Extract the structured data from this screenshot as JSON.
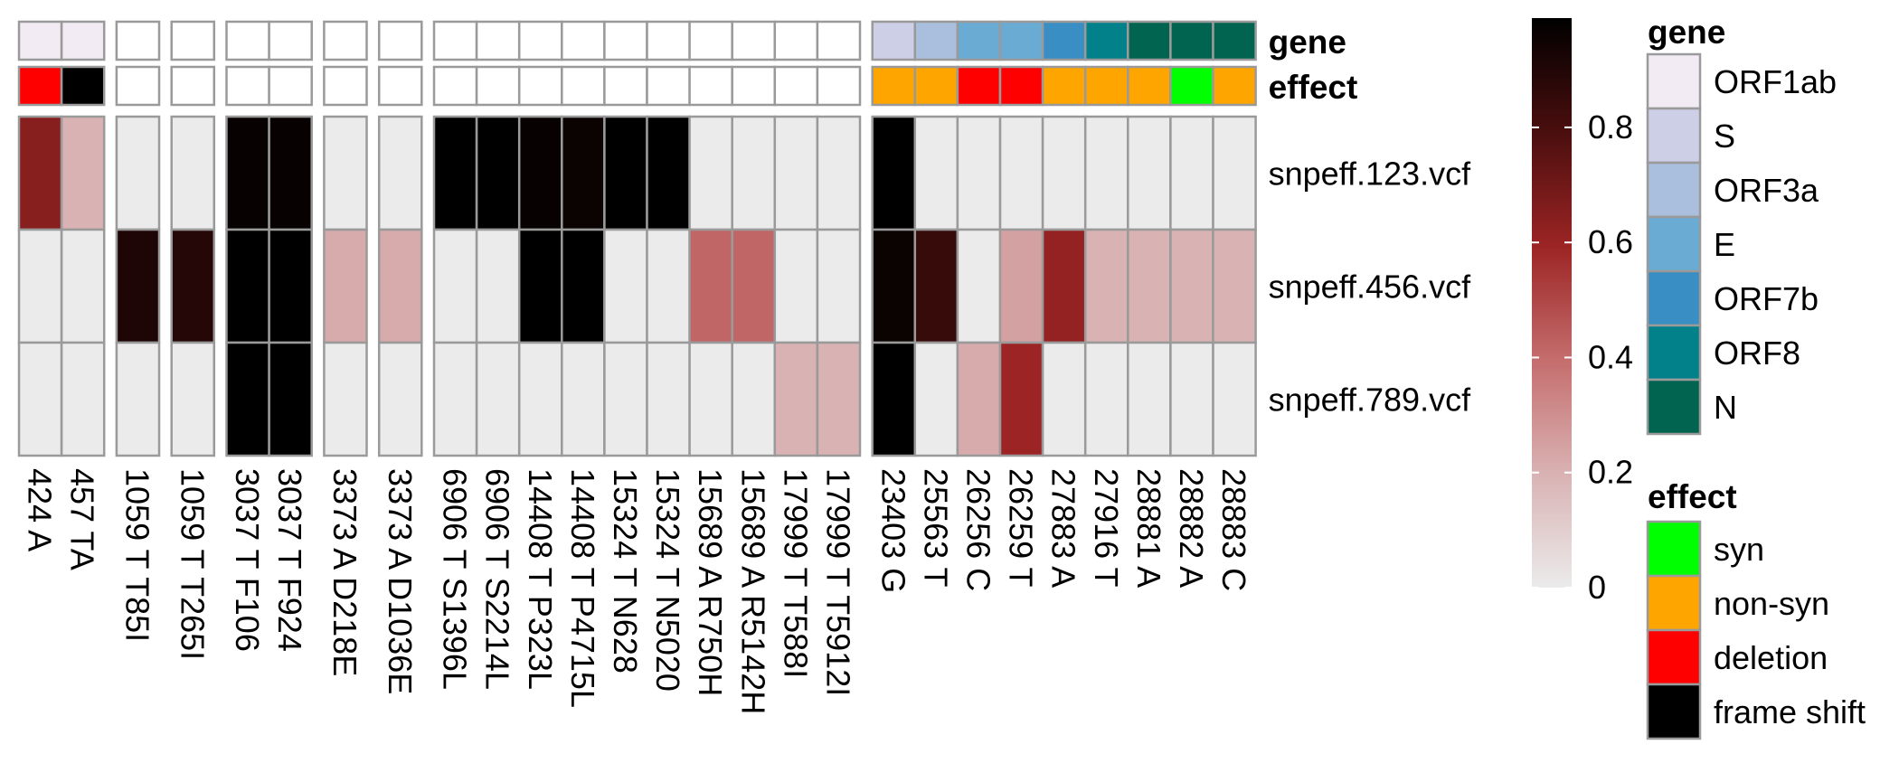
{
  "chart_data": {
    "type": "heatmap",
    "title": "",
    "xlabel": "",
    "ylabel": "",
    "columns": [
      "424 A",
      "457 TA",
      "1059 T T85I",
      "1059 T T265I",
      "3037 T F106",
      "3037 T F924",
      "3373 A D218E",
      "3373 A D1036E",
      "6906 T S1396L",
      "6906 T S2214L",
      "14408 T P323L",
      "14408 T P4715L",
      "15324 T N628",
      "15324 T N5020",
      "15689 A R750H",
      "15689 A R5142H",
      "17999 T T588I",
      "17999 T T5912I",
      "23403 G",
      "25563 T",
      "26256 C",
      "26259 T",
      "27883 A",
      "27916 T",
      "28881 A",
      "28882 A",
      "28883 C"
    ],
    "column_groups": [
      2,
      1,
      1,
      2,
      1,
      1,
      10,
      9
    ],
    "rows": [
      "snpeff.123.vcf",
      "snpeff.456.vcf",
      "snpeff.789.vcf"
    ],
    "values": [
      [
        0.65,
        0.2,
        0,
        0,
        0.98,
        0.98,
        0,
        0,
        1.0,
        1.0,
        0.98,
        0.97,
        1.0,
        1.0,
        0,
        0,
        0,
        0,
        1.0,
        0,
        0,
        0,
        0,
        0,
        0,
        0,
        0
      ],
      [
        0,
        0,
        0.92,
        0.9,
        1.0,
        1.0,
        0.22,
        0.22,
        0,
        0,
        1.0,
        1.0,
        0,
        0,
        0.42,
        0.42,
        0,
        0,
        0.97,
        0.85,
        0,
        0.25,
        0.62,
        0.2,
        0.2,
        0.2,
        0.2
      ],
      [
        0,
        0,
        0,
        0,
        1.0,
        1.0,
        0,
        0,
        0,
        0,
        0,
        0,
        0,
        0,
        0,
        0,
        0.2,
        0.2,
        1.0,
        0,
        0.22,
        0.6,
        0,
        0,
        0,
        0,
        0
      ]
    ],
    "gene_annotation": [
      0,
      0,
      null,
      null,
      null,
      null,
      null,
      null,
      null,
      null,
      null,
      null,
      null,
      null,
      null,
      null,
      null,
      null,
      1,
      2,
      3,
      3,
      4,
      5,
      6,
      6,
      6
    ],
    "effect_annotation": [
      2,
      3,
      null,
      null,
      null,
      null,
      null,
      null,
      null,
      null,
      null,
      null,
      null,
      null,
      null,
      null,
      null,
      null,
      1,
      1,
      2,
      2,
      1,
      1,
      1,
      0,
      1
    ],
    "annotation_labels": [
      "gene",
      "effect"
    ],
    "legend": {
      "colorbar_ticks": [
        "0.8",
        "0.6",
        "0.4",
        "0.2",
        "0"
      ],
      "colorbar_range": [
        0,
        1
      ],
      "gene": {
        "title": "gene",
        "items": [
          {
            "label": "ORF1ab",
            "color": "#f2ebf4"
          },
          {
            "label": "S",
            "color": "#cdcfe6"
          },
          {
            "label": "ORF3a",
            "color": "#a9bfdd"
          },
          {
            "label": "E",
            "color": "#6aabd3"
          },
          {
            "label": "ORF7b",
            "color": "#398ec3"
          },
          {
            "label": "ORF8",
            "color": "#02818a"
          },
          {
            "label": "N",
            "color": "#016450"
          }
        ]
      },
      "effect": {
        "title": "effect",
        "items": [
          {
            "label": "syn",
            "color": "#00ff00"
          },
          {
            "label": "non-syn",
            "color": "#ffa500"
          },
          {
            "label": "deletion",
            "color": "#ff0000"
          },
          {
            "label": "frame shift",
            "color": "#000000"
          }
        ]
      }
    },
    "colors": {
      "scale": [
        "#ebebeb",
        "#d9b2b3",
        "#c56d6d",
        "#9c2424",
        "#4a0e0e",
        "#000000"
      ],
      "cell_border": "#9a9a9a",
      "empty_annotation": "#ffffff"
    }
  }
}
